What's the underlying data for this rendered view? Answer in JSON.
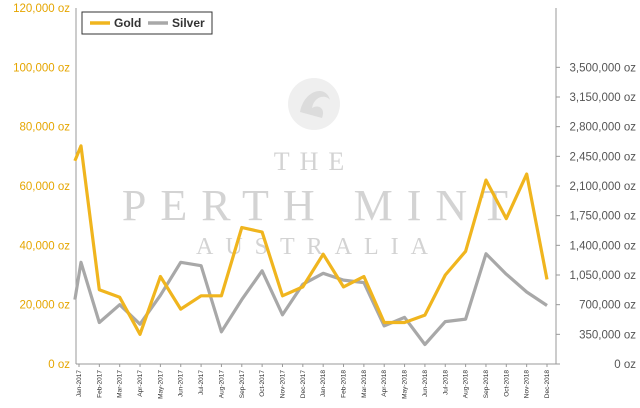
{
  "chart_data": {
    "type": "line",
    "categories": [
      "Jan-2017",
      "Feb-2017",
      "Mar-2017",
      "Apr-2017",
      "May-2017",
      "Jun-2017",
      "Jul-2017",
      "Aug-2017",
      "Sep-2017",
      "Oct-2017",
      "Nov-2017",
      "Dec-2017",
      "Jan-2018",
      "Feb-2018",
      "Mar-2018",
      "Apr-2018",
      "May-2018",
      "Jun-2018",
      "Jul-2018",
      "Aug-2018",
      "Sep-2018",
      "Oct-2018",
      "Nov-2018",
      "Dec-2018"
    ],
    "x_visible_labels": [
      "Jan-2017",
      "Feb-2017",
      "Mar-2017",
      "Apr-2017",
      "May-2017",
      "Jun-2017",
      "Jul-2017",
      "Aug-2017",
      "Sep-2017",
      "Oct-2017",
      "Nov-2017",
      "Dec-2017",
      "Jan-2018",
      "Feb-2018",
      "Mar-2018",
      "Apr-2018",
      "May-2018",
      "Jun-2018",
      "Jul-2018",
      "Aug-2018",
      "Sep-2018",
      "Oct-2018",
      "Nov-2018",
      "Dec-2018"
    ],
    "y_left_ticks": [
      "0 oz",
      "20,000 oz",
      "40,000 oz",
      "60,000 oz",
      "80,000 oz",
      "100,000 oz",
      "120,000 oz"
    ],
    "y_right_ticks": [
      "0 oz",
      "350,000 oz",
      "700,000 oz",
      "1,050,000 oz",
      "1,400,000 oz",
      "1,750,000 oz",
      "2,100,000 oz",
      "2,450,000 oz",
      "2,800,000 oz",
      "3,150,000 oz",
      "3,500,000 oz"
    ],
    "ylim_left": [
      0,
      120000
    ],
    "ylim_right": [
      0,
      4200000
    ],
    "grid": false,
    "legend_placement": "top-left",
    "series": [
      {
        "name": "Gold",
        "axis": "left",
        "color": "#F0B51E",
        "x": [
          -0.2,
          0.1,
          1,
          2,
          3,
          4,
          5,
          6,
          7,
          8,
          9,
          10,
          11,
          12,
          13,
          14,
          15,
          16,
          17,
          18,
          19,
          20,
          21,
          22,
          23
        ],
        "values": [
          68500,
          73500,
          25000,
          22500,
          10000,
          29500,
          18500,
          23000,
          23000,
          46000,
          44500,
          23000,
          26000,
          37000,
          26000,
          29500,
          14000,
          14000,
          16500,
          30000,
          38000,
          62000,
          49000,
          64000,
          28500
        ]
      },
      {
        "name": "Silver",
        "axis": "right",
        "color": "#A8A8A8",
        "x": [
          -0.2,
          0.1,
          1,
          2,
          3,
          4,
          5,
          6,
          7,
          8,
          9,
          10,
          11,
          12,
          13,
          14,
          15,
          16,
          17,
          18,
          19,
          20,
          21,
          22,
          23
        ],
        "values": [
          760000,
          1200000,
          490000,
          700000,
          470000,
          810000,
          1200000,
          1160000,
          380000,
          760000,
          1100000,
          580000,
          940000,
          1070000,
          990000,
          960000,
          450000,
          550000,
          230000,
          500000,
          530000,
          1300000,
          1060000,
          850000,
          690000
        ]
      }
    ],
    "watermark": {
      "line1": "THE",
      "line2": "PERTH MINT",
      "line3": "AUSTRALIA"
    }
  }
}
